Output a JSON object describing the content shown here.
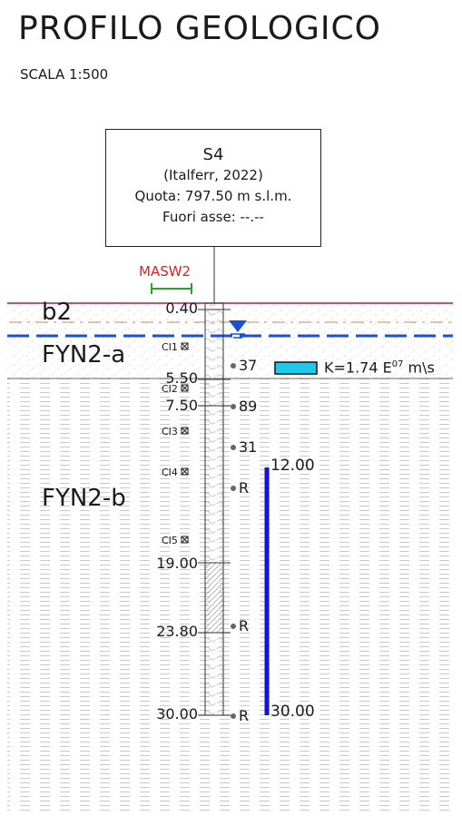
{
  "header": {
    "title": "PROFILO GEOLOGICO",
    "scale": "SCALA 1:500"
  },
  "borehole_info": {
    "name": "S4",
    "source": "(Italferr, 2022)",
    "quota": "Quota: 797.50 m s.l.m.",
    "offset": "Fuori asse: --.--"
  },
  "masw_label": "MASW2",
  "layers": [
    {
      "code": "b2",
      "top_m": 0.0,
      "bottom_m": 0.4
    },
    {
      "code": "FYN2-a",
      "top_m": 0.4,
      "bottom_m": 5.5
    },
    {
      "code": "FYN2-b",
      "top_m": 5.5,
      "bottom_m": 30.0
    }
  ],
  "depth_labels": [
    "0.40",
    "5.50",
    "7.50",
    "19.00",
    "23.80",
    "30.00"
  ],
  "samples": [
    "CI1",
    "CI2",
    "CI3",
    "CI4",
    "CI5"
  ],
  "spt_values": [
    "37",
    "89",
    "31",
    "R",
    "R",
    "R"
  ],
  "permeability": {
    "text": "K=1.74 E",
    "exponent": "07",
    "unit": "m\\s"
  },
  "piezometer_interval": {
    "top_label": "12.00",
    "bottom_label": "30.00",
    "top_m": 12.0,
    "bottom_m": 30.0
  },
  "water_table_m": 1.6,
  "colors": {
    "ground_line": "#c0143c",
    "water_line": "#1a4fd6",
    "piezometer": "#1010e0",
    "permeability_box": "#22c8e8",
    "masw": "#22aa22",
    "masw_text": "#e02020"
  }
}
